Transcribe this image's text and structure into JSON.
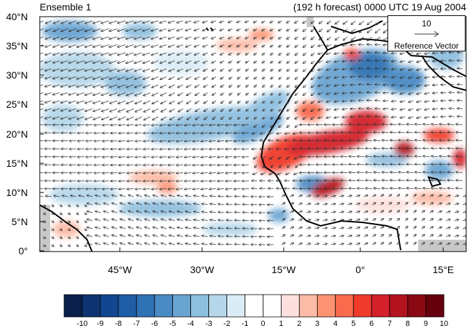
{
  "header": {
    "left_title": "Ensemble 1",
    "right_title": "(192 h forecast) 0000 UTC 19 Aug 2004"
  },
  "map": {
    "lat_labels": [
      "40°N",
      "35°N",
      "30°N",
      "25°N",
      "20°N",
      "15°N",
      "10°N",
      "5°N",
      "0°"
    ],
    "lon_labels": [
      "45°W",
      "30°W",
      "15°W",
      "0°",
      "15°E"
    ],
    "lat_range": [
      0,
      40
    ],
    "lon_range": [
      -58,
      20
    ],
    "ocean_color": "#ffffff",
    "land_missing_color": "#c8c8c8"
  },
  "reference_vector": {
    "value": "10",
    "label": "Reference Vector"
  },
  "colorbar": {
    "labels": [
      "-10",
      "-9",
      "-8",
      "-7",
      "-6",
      "-5",
      "-4",
      "-3",
      "-2",
      "-1",
      "0",
      "1",
      "2",
      "3",
      "4",
      "5",
      "6",
      "7",
      "8",
      "9",
      "10"
    ],
    "colors": [
      "#0b1f4b",
      "#0e3370",
      "#12478f",
      "#1f5ea6",
      "#2f72b3",
      "#4a8bc3",
      "#6aa4d1",
      "#8fbfdf",
      "#b6d7ea",
      "#dcecf6",
      "#ffffff",
      "#ffffff",
      "#fde0dd",
      "#fcbba6",
      "#fc9272",
      "#f86b4d",
      "#ef3b2c",
      "#d3202a",
      "#b3121f",
      "#8a0a14",
      "#67000d"
    ]
  },
  "chart_data": {
    "type": "map",
    "projection": "cylindrical equidistant",
    "variable": "wind vectors over color-shaded field",
    "colorbar_range": [
      -10,
      10
    ],
    "anomaly_features": [
      {
        "sign": "positive",
        "approx_lon": -10,
        "approx_lat": 19,
        "peak": 7
      },
      {
        "sign": "positive",
        "approx_lon": 0,
        "approx_lat": 22,
        "peak": 7
      },
      {
        "sign": "positive",
        "approx_lon": -6,
        "approx_lat": 11,
        "peak": 8
      },
      {
        "sign": "positive",
        "approx_lon": 12,
        "approx_lat": 18,
        "peak": 8
      },
      {
        "sign": "negative",
        "approx_lon": -25,
        "approx_lat": 22,
        "peak": -4
      },
      {
        "sign": "negative",
        "approx_lon": 0,
        "approx_lat": 33,
        "peak": -6
      },
      {
        "sign": "negative",
        "approx_lon": -2,
        "approx_lat": 13,
        "peak": -5
      }
    ]
  }
}
